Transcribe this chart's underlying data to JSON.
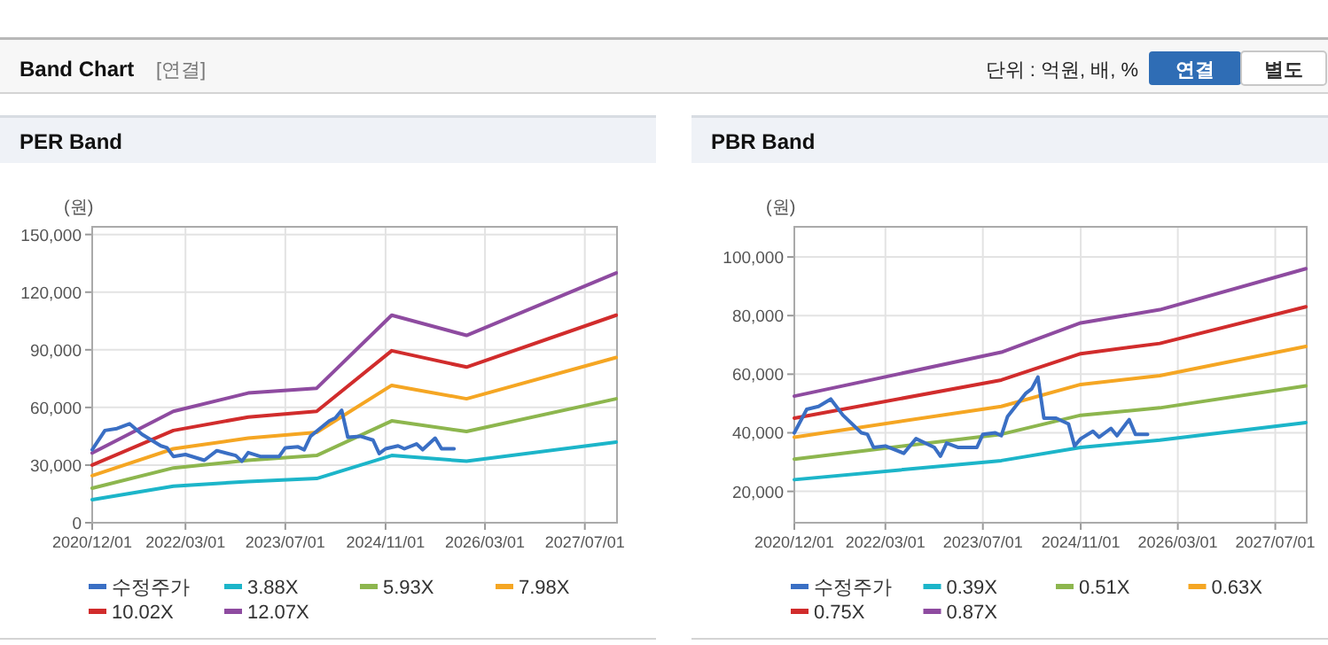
{
  "chart_data": [
    {
      "type": "other",
      "annotations": [
        "Band Chart",
        "[연결]",
        "단위 : 억원, 배, %",
        "연결",
        "별도"
      ]
    },
    {
      "type": "line",
      "title": "PER Band",
      "ylabel": "(원)",
      "legend": "bottom",
      "grid": true,
      "xlim": [
        "2020-12-01",
        "2027-12-05"
      ],
      "ylim": [
        0,
        154000
      ],
      "xticks": [
        {
          "value": "2020-12-01",
          "label": "2020/12/01"
        },
        {
          "value": "2022-03-01",
          "label": "2022/03/01"
        },
        {
          "value": "2023-07-01",
          "label": "2023/07/01"
        },
        {
          "value": "2024-11-01",
          "label": "2024/11/01"
        },
        {
          "value": "2026-03-01",
          "label": "2026/03/01"
        },
        {
          "value": "2027-07-01",
          "label": "2027/07/01"
        }
      ],
      "yticks": [
        {
          "value": 0,
          "label": "0"
        },
        {
          "value": 30000,
          "label": "30,000"
        },
        {
          "value": 60000,
          "label": "60,000"
        },
        {
          "value": 90000,
          "label": "90,000"
        },
        {
          "value": 120000,
          "label": "120,000"
        },
        {
          "value": 150000,
          "label": "150,000"
        }
      ],
      "series": [
        {
          "name": "수정주가",
          "color": "#3a6fc4",
          "x": [
            "2020-12",
            "2021-02",
            "2021-04",
            "2021-06",
            "2021-08",
            "2021-11",
            "2021-12",
            "2022-01",
            "2022-03",
            "2022-06",
            "2022-08",
            "2022-11",
            "2022-12",
            "2023-01",
            "2023-03",
            "2023-06",
            "2023-07",
            "2023-09",
            "2023-10",
            "2023-11",
            "2024-02",
            "2024-03",
            "2024-04",
            "2024-05",
            "2024-07",
            "2024-09",
            "2024-10",
            "2024-11",
            "2025-01",
            "2025-02",
            "2025-04",
            "2025-05",
            "2025-07",
            "2025-08",
            "2025-10"
          ],
          "values": [
            38000,
            48000,
            49000,
            51500,
            46000,
            40000,
            39000,
            34500,
            35500,
            32500,
            37500,
            35000,
            32000,
            36500,
            34500,
            34500,
            39000,
            39500,
            38000,
            45000,
            53000,
            54500,
            58500,
            44500,
            45000,
            43000,
            36000,
            38500,
            40000,
            38500,
            41000,
            38000,
            44000,
            38500,
            38500
          ]
        },
        {
          "name": "3.88X",
          "color": "#1cb5c9",
          "x": [
            "2020-12",
            "2022-01",
            "2023-01",
            "2023-12",
            "2024-12",
            "2025-12",
            "2027-12"
          ],
          "values": [
            12000,
            19000,
            21500,
            23000,
            35000,
            32000,
            42000
          ]
        },
        {
          "name": "5.93X",
          "color": "#8db64e",
          "x": [
            "2020-12",
            "2022-01",
            "2023-01",
            "2023-12",
            "2024-12",
            "2025-12",
            "2027-12"
          ],
          "values": [
            18000,
            28500,
            32500,
            35000,
            53000,
            47500,
            64500
          ]
        },
        {
          "name": "7.98X",
          "color": "#f5a623",
          "x": [
            "2020-12",
            "2022-01",
            "2023-01",
            "2023-12",
            "2024-12",
            "2025-12",
            "2027-12"
          ],
          "values": [
            24500,
            38500,
            44000,
            47000,
            71500,
            64500,
            86000
          ]
        },
        {
          "name": "10.02X",
          "color": "#d12c2c",
          "x": [
            "2020-12",
            "2022-01",
            "2023-01",
            "2023-12",
            "2024-12",
            "2025-12",
            "2027-12"
          ],
          "values": [
            30000,
            48000,
            55000,
            58000,
            89500,
            81000,
            108000
          ]
        },
        {
          "name": "12.07X",
          "color": "#8e4ba0",
          "x": [
            "2020-12",
            "2022-01",
            "2023-01",
            "2023-12",
            "2024-12",
            "2025-12",
            "2027-12"
          ],
          "values": [
            36300,
            58000,
            67500,
            70000,
            108000,
            97500,
            130000
          ]
        }
      ]
    },
    {
      "type": "line",
      "title": "PBR Band",
      "ylabel": "(원)",
      "legend": "bottom",
      "grid": true,
      "xlim": [
        "2020-12-01",
        "2027-12-05"
      ],
      "ylim": [
        9300,
        110300
      ],
      "xticks": [
        {
          "value": "2020-12-01",
          "label": "2020/12/01"
        },
        {
          "value": "2022-03-01",
          "label": "2022/03/01"
        },
        {
          "value": "2023-07-01",
          "label": "2023/07/01"
        },
        {
          "value": "2024-11-01",
          "label": "2024/11/01"
        },
        {
          "value": "2026-03-01",
          "label": "2026/03/01"
        },
        {
          "value": "2027-07-01",
          "label": "2027/07/01"
        }
      ],
      "yticks": [
        {
          "value": 20000,
          "label": "20,000"
        },
        {
          "value": 40000,
          "label": "40,000"
        },
        {
          "value": 60000,
          "label": "60,000"
        },
        {
          "value": 80000,
          "label": "80,000"
        },
        {
          "value": 100000,
          "label": "100,000"
        }
      ],
      "series": [
        {
          "name": "수정주가",
          "color": "#3a6fc4",
          "x": [
            "2020-12",
            "2021-02",
            "2021-04",
            "2021-06",
            "2021-08",
            "2021-11",
            "2021-12",
            "2022-01",
            "2022-03",
            "2022-06",
            "2022-08",
            "2022-11",
            "2022-12",
            "2023-01",
            "2023-03",
            "2023-06",
            "2023-07",
            "2023-09",
            "2023-10",
            "2023-11",
            "2024-02",
            "2024-03",
            "2024-04",
            "2024-05",
            "2024-07",
            "2024-09",
            "2024-10",
            "2024-11",
            "2025-01",
            "2025-02",
            "2025-04",
            "2025-05",
            "2025-07",
            "2025-08",
            "2025-10"
          ],
          "values": [
            40000,
            48000,
            49000,
            51500,
            46000,
            40000,
            39500,
            35000,
            35500,
            33000,
            38000,
            35000,
            32000,
            36500,
            35000,
            35000,
            39500,
            40000,
            39000,
            45500,
            53500,
            55000,
            59000,
            45000,
            45000,
            43000,
            35500,
            38000,
            40500,
            38500,
            41500,
            39000,
            44500,
            39500,
            39500
          ]
        },
        {
          "name": "0.39X",
          "color": "#1cb5c9",
          "x": [
            "2020-12",
            "2023-10",
            "2024-11",
            "2025-12",
            "2027-12"
          ],
          "values": [
            24000,
            30500,
            35000,
            37500,
            43500
          ]
        },
        {
          "name": "0.51X",
          "color": "#8db64e",
          "x": [
            "2020-12",
            "2023-10",
            "2024-11",
            "2025-12",
            "2027-12"
          ],
          "values": [
            31000,
            39500,
            46000,
            48500,
            56000
          ]
        },
        {
          "name": "0.63X",
          "color": "#f5a623",
          "x": [
            "2020-12",
            "2023-10",
            "2024-11",
            "2025-12",
            "2027-12"
          ],
          "values": [
            38500,
            49000,
            56500,
            59500,
            69500
          ]
        },
        {
          "name": "0.75X",
          "color": "#d12c2c",
          "x": [
            "2020-12",
            "2023-10",
            "2024-11",
            "2025-12",
            "2027-12"
          ],
          "values": [
            45000,
            58000,
            67000,
            70500,
            83000
          ]
        },
        {
          "name": "0.87X",
          "color": "#8e4ba0",
          "x": [
            "2020-12",
            "2023-10",
            "2024-11",
            "2025-12",
            "2027-12"
          ],
          "values": [
            52500,
            67500,
            77500,
            82000,
            96000
          ]
        }
      ]
    }
  ]
}
